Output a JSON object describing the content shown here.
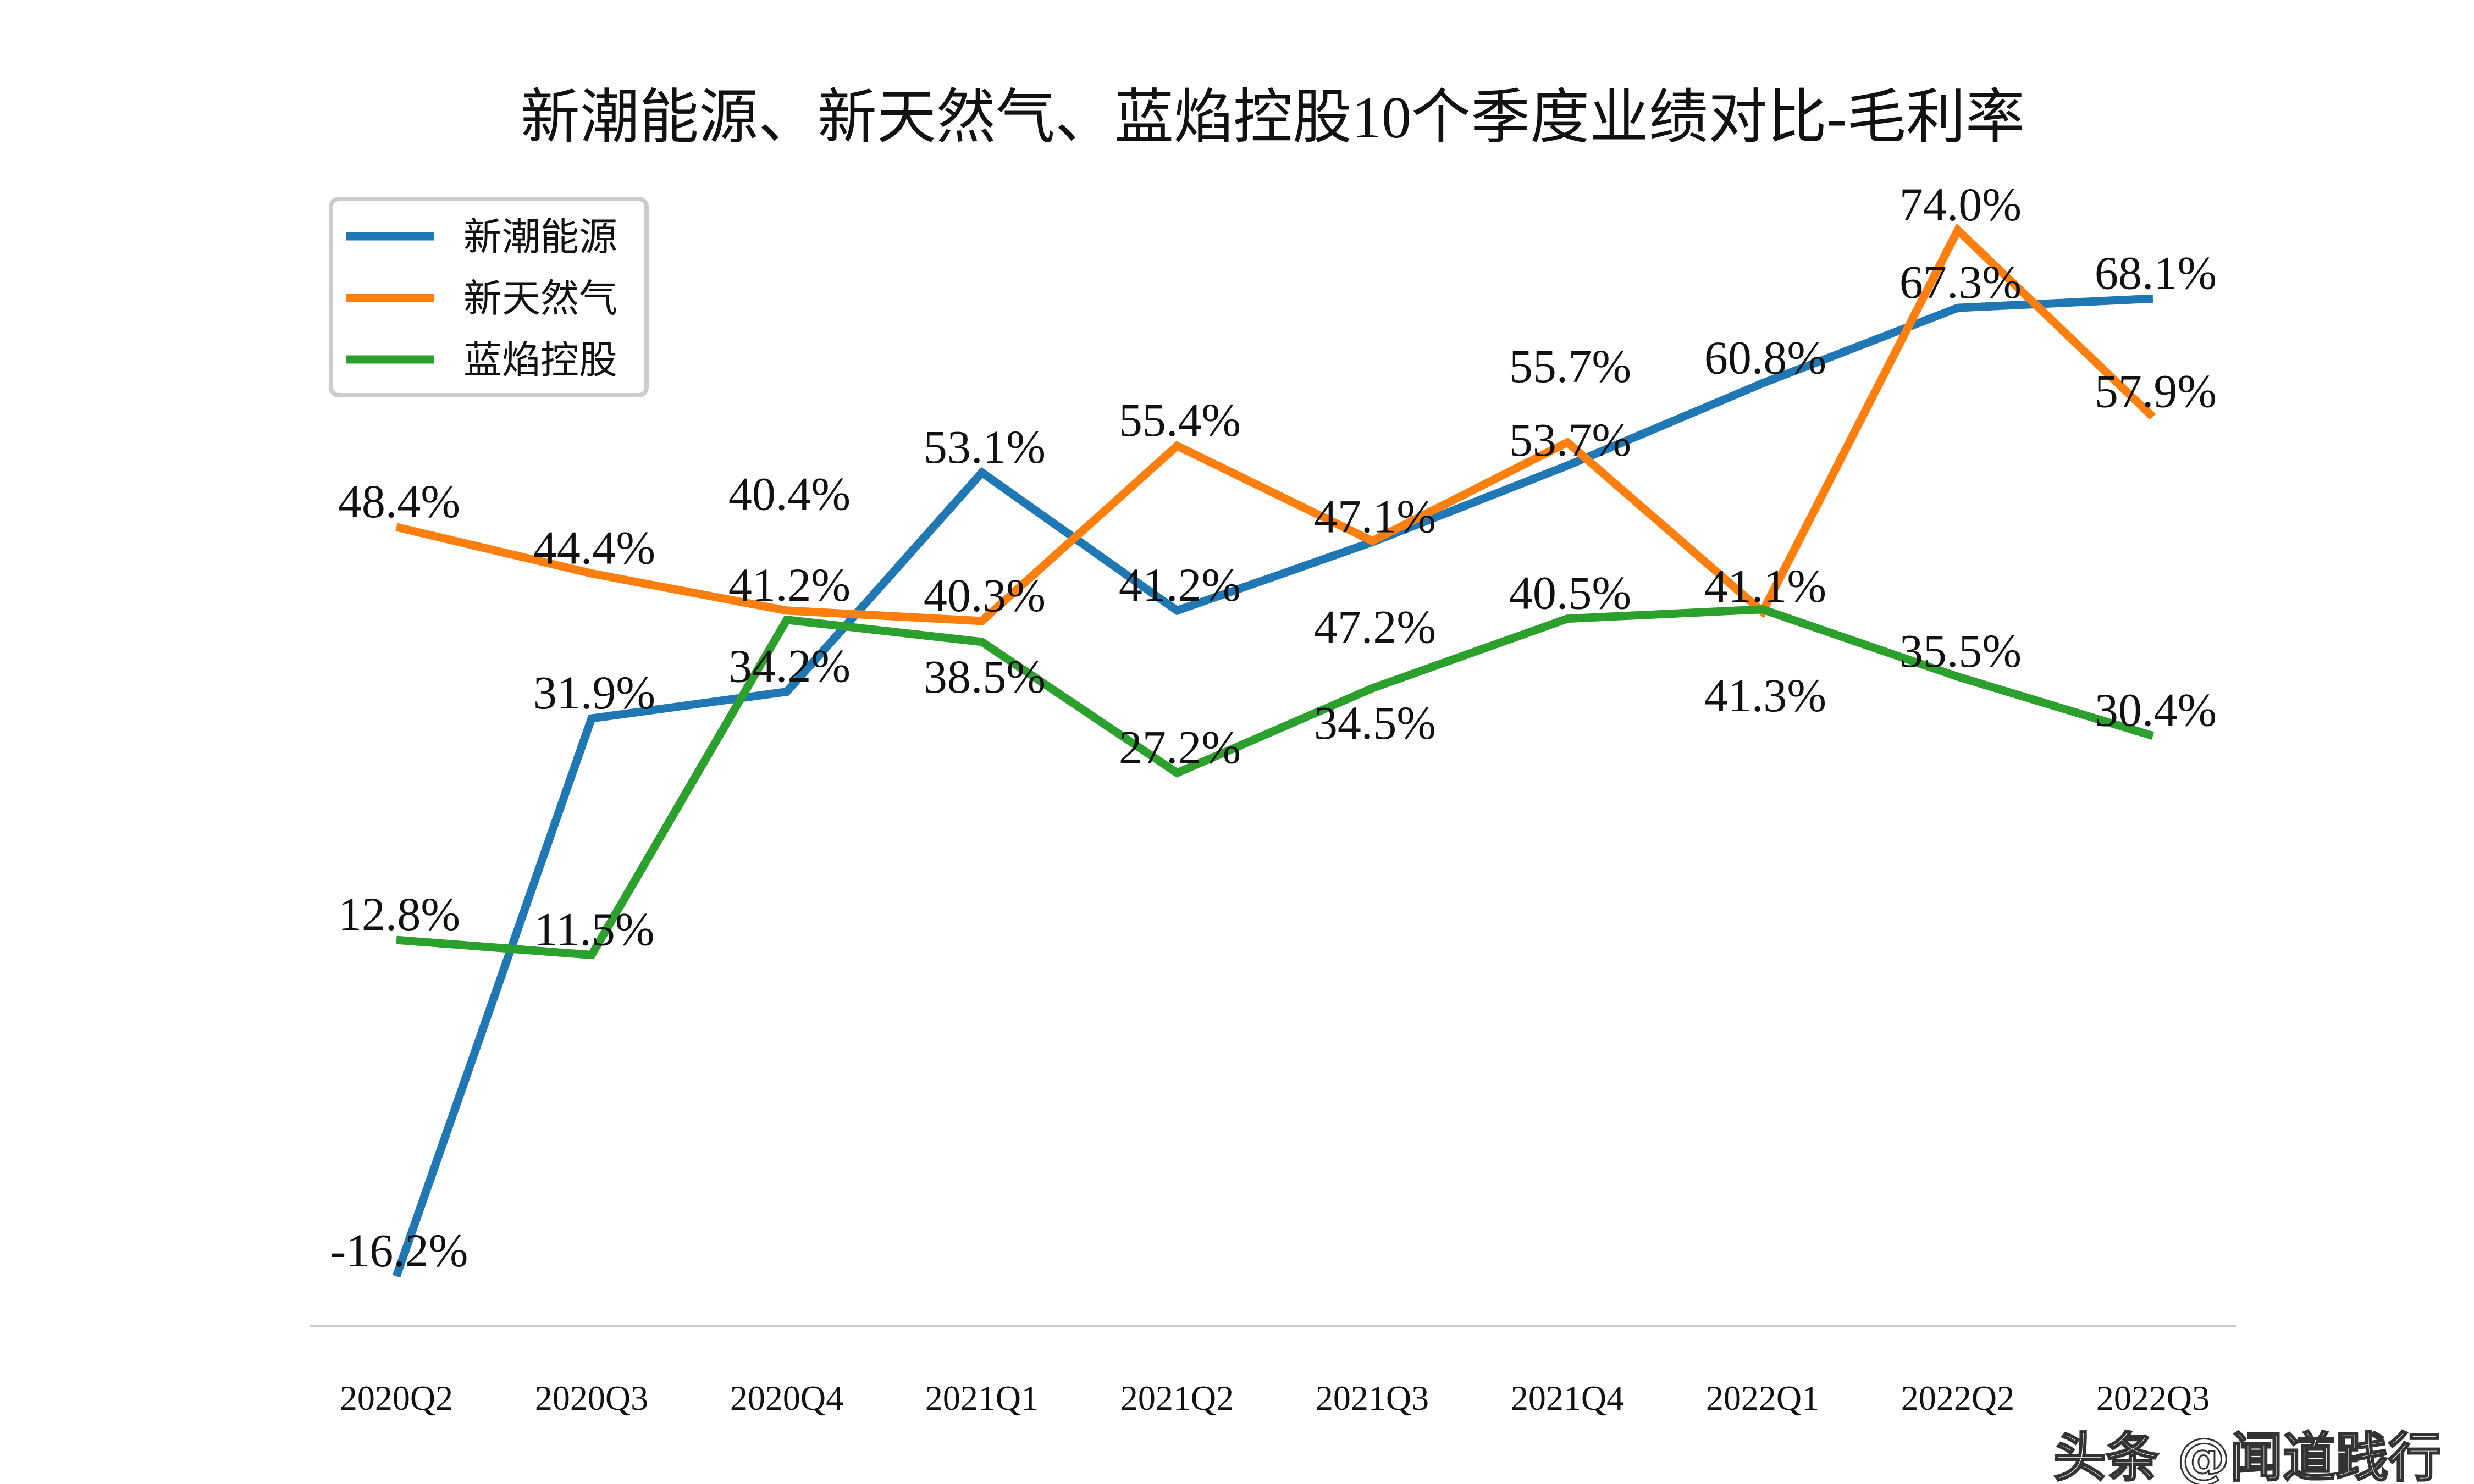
{
  "chart_data": {
    "type": "line",
    "title": "新潮能源、新天然气、蓝焰控股10个季度业绩对比-毛利率",
    "categories": [
      "2020Q2",
      "2020Q3",
      "2020Q4",
      "2021Q1",
      "2021Q2",
      "2021Q3",
      "2021Q4",
      "2022Q1",
      "2022Q2",
      "2022Q3"
    ],
    "series": [
      {
        "name": "新潮能源",
        "color": "#1f77b4",
        "values": [
          -16.2,
          31.9,
          34.2,
          53.1,
          41.2,
          47.1,
          53.7,
          60.8,
          67.3,
          68.1
        ]
      },
      {
        "name": "新天然气",
        "color": "#ff7f0e",
        "values": [
          48.4,
          44.4,
          41.2,
          40.3,
          55.4,
          47.2,
          55.7,
          41.1,
          74.0,
          57.9
        ]
      },
      {
        "name": "蓝焰控股",
        "color": "#2ca02c",
        "values": [
          12.8,
          11.5,
          40.4,
          38.5,
          27.2,
          34.5,
          40.5,
          41.3,
          35.5,
          30.4
        ]
      }
    ],
    "value_suffix": "%",
    "legend_placement": "top-left",
    "grid": false,
    "yaxis_visible": false
  },
  "watermark": "头条 @闻道践行"
}
